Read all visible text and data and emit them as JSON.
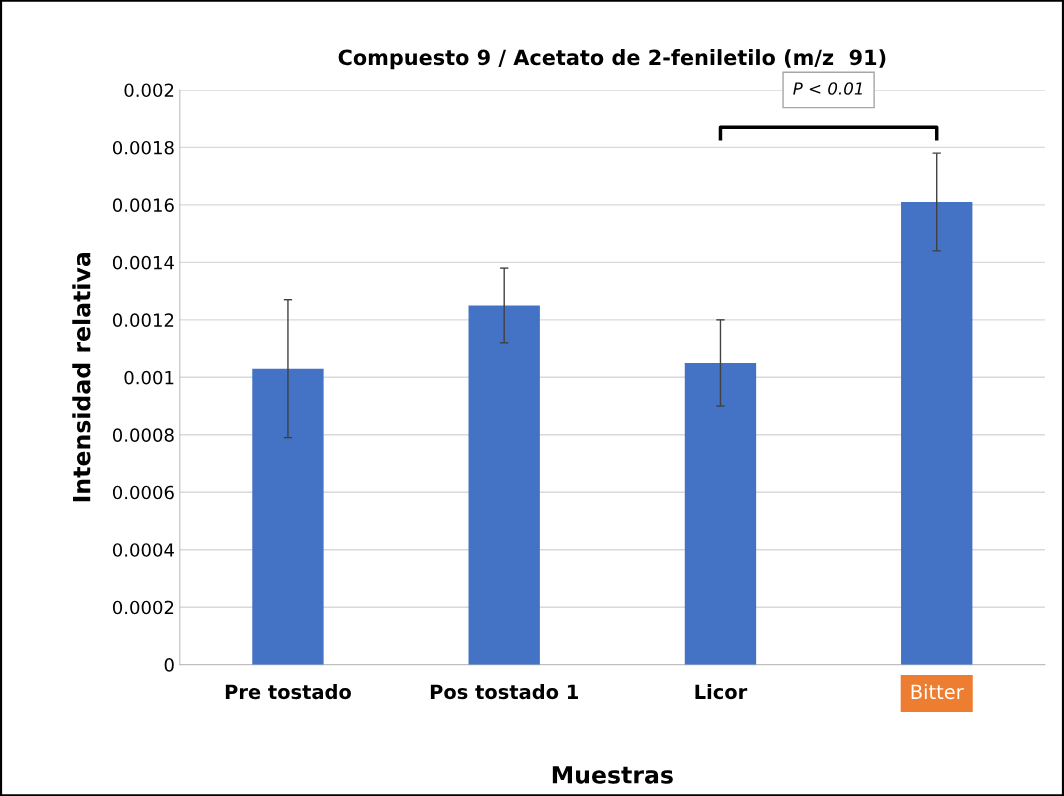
{
  "chart_data": {
    "type": "bar",
    "title": "Compuesto 9 / Acetato de 2-feniletilo (m/z  91)",
    "xlabel": "Muestras",
    "ylabel": "Intensidad relativa",
    "categories": [
      "Pre tostado",
      "Pos tostado 1",
      "Licor",
      "Bitter"
    ],
    "values": [
      0.00103,
      0.00125,
      0.00105,
      0.00161
    ],
    "errors": [
      0.00024,
      0.00013,
      0.00015,
      0.00017
    ],
    "color": "#4472c4",
    "ylim": [
      0,
      0.002
    ],
    "yticks": [
      0,
      0.0002,
      0.0004,
      0.0006,
      0.0008,
      0.001,
      0.0012,
      0.0014,
      0.0016,
      0.0018,
      0.002
    ],
    "grid": "y",
    "annotations": [
      "P < 0.01"
    ]
  }
}
